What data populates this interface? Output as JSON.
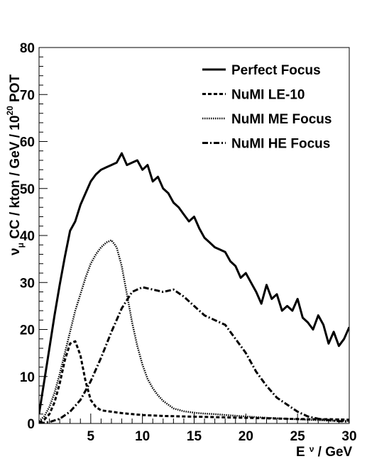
{
  "chart_data": {
    "type": "line",
    "xlabel": {
      "main": "E",
      "sub": "ν",
      "rest": " / GeV"
    },
    "ylabel": {
      "nu": "ν",
      "sub": "μ",
      "rest": " CC / kton / GeV / 10",
      "sup": "20",
      "tail": " POT"
    },
    "xlim": [
      0,
      30
    ],
    "ylim": [
      0,
      80
    ],
    "x_ticks": [
      5,
      10,
      15,
      20,
      25,
      30
    ],
    "y_ticks": [
      0,
      10,
      20,
      30,
      40,
      50,
      60,
      70,
      80
    ],
    "x_tick_labels": [
      "5",
      "10",
      "15",
      "20",
      "25",
      "30"
    ],
    "y_tick_labels": [
      "0",
      "10",
      "20",
      "30",
      "40",
      "50",
      "60",
      "70",
      "80"
    ],
    "legend_position": "top-right",
    "series": [
      {
        "name": "Perfect Focus",
        "style": "solid",
        "x": [
          0.0,
          0.5,
          1.0,
          1.5,
          2.0,
          2.5,
          3.0,
          3.5,
          4.0,
          4.5,
          5.0,
          5.5,
          6.0,
          6.5,
          7.0,
          7.5,
          8.0,
          8.5,
          9.0,
          9.5,
          10.0,
          10.5,
          11.0,
          11.5,
          12.0,
          12.5,
          13.0,
          13.5,
          14.0,
          14.5,
          15.0,
          15.5,
          16.0,
          16.5,
          17.0,
          17.5,
          18.0,
          18.5,
          19.0,
          19.5,
          20.0,
          20.5,
          21.0,
          21.5,
          22.0,
          22.5,
          23.0,
          23.5,
          24.0,
          24.5,
          25.0,
          25.5,
          26.0,
          26.5,
          27.0,
          27.5,
          28.0,
          28.5,
          29.0,
          29.5,
          30.0
        ],
        "values": [
          2.0,
          9.0,
          16.0,
          23.0,
          29.5,
          35.5,
          41.0,
          43.0,
          46.5,
          49.0,
          51.5,
          53.0,
          54.0,
          54.5,
          55.0,
          55.5,
          57.5,
          55.0,
          55.5,
          56.0,
          54.0,
          55.0,
          51.5,
          52.5,
          50.0,
          49.0,
          47.0,
          46.0,
          44.5,
          43.0,
          44.0,
          41.5,
          39.5,
          38.5,
          37.5,
          37.0,
          36.5,
          34.5,
          33.5,
          31.0,
          32.0,
          30.0,
          28.0,
          25.5,
          29.5,
          26.5,
          27.5,
          24.0,
          25.0,
          24.0,
          26.5,
          22.5,
          21.5,
          20.0,
          23.0,
          21.0,
          17.0,
          19.5,
          16.5,
          18.0,
          20.5
        ]
      },
      {
        "name": "NuMI LE-10",
        "style": "dashed",
        "x": [
          0.0,
          0.5,
          1.0,
          1.5,
          2.0,
          2.5,
          3.0,
          3.5,
          4.0,
          4.5,
          5.0,
          5.5,
          6.0,
          7.0,
          8.0,
          9.0,
          10.0,
          12.0,
          14.0,
          16.0,
          18.0,
          20.0,
          22.0,
          24.0,
          26.0,
          28.0,
          30.0
        ],
        "values": [
          0.2,
          0.8,
          2.0,
          4.5,
          8.5,
          13.5,
          17.0,
          17.5,
          14.5,
          9.0,
          5.0,
          3.5,
          2.8,
          2.5,
          2.2,
          2.0,
          1.8,
          1.6,
          1.5,
          1.4,
          1.3,
          1.2,
          1.1,
          1.0,
          0.9,
          0.9,
          0.8
        ]
      },
      {
        "name": "NuMI ME Focus",
        "style": "dotted",
        "x": [
          0.0,
          0.5,
          1.0,
          1.5,
          2.0,
          2.5,
          3.0,
          3.5,
          4.0,
          4.5,
          5.0,
          5.5,
          6.0,
          6.5,
          7.0,
          7.5,
          8.0,
          8.5,
          9.0,
          9.5,
          10.0,
          10.5,
          11.0,
          11.5,
          12.0,
          12.5,
          13.0,
          14.0,
          15.0,
          16.0,
          17.0,
          18.0,
          20.0,
          22.0,
          24.0,
          26.0,
          28.0,
          30.0
        ],
        "values": [
          0.5,
          1.5,
          3.5,
          6.5,
          10.5,
          15.0,
          19.5,
          24.0,
          27.5,
          31.0,
          34.0,
          36.0,
          37.5,
          38.5,
          39.0,
          37.5,
          33.5,
          27.5,
          21.5,
          16.5,
          12.5,
          9.5,
          7.5,
          6.0,
          4.8,
          4.0,
          3.2,
          2.6,
          2.3,
          2.1,
          2.0,
          1.8,
          1.5,
          1.2,
          1.0,
          0.8,
          0.6,
          0.5
        ]
      },
      {
        "name": "NuMI HE Focus",
        "style": "dashdot",
        "x": [
          0.0,
          1.0,
          2.0,
          3.0,
          4.0,
          5.0,
          6.0,
          7.0,
          8.0,
          9.0,
          10.0,
          11.0,
          12.0,
          13.0,
          14.0,
          15.0,
          16.0,
          17.0,
          18.0,
          19.0,
          20.0,
          21.0,
          22.0,
          23.0,
          24.0,
          25.0,
          26.0,
          27.0,
          28.0,
          29.0,
          30.0
        ],
        "values": [
          0.0,
          0.3,
          1.0,
          2.5,
          5.0,
          9.0,
          14.0,
          19.5,
          24.5,
          28.0,
          29.0,
          28.5,
          28.0,
          28.5,
          27.0,
          25.0,
          23.0,
          22.0,
          21.0,
          18.0,
          15.0,
          11.0,
          8.0,
          5.5,
          4.0,
          2.5,
          1.5,
          1.0,
          0.7,
          0.5,
          0.4
        ]
      }
    ]
  }
}
